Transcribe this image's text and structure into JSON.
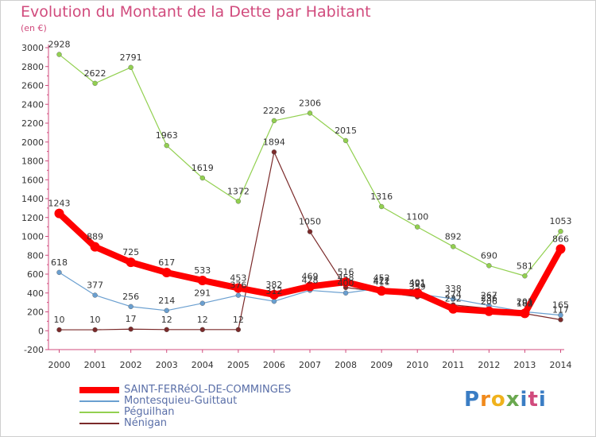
{
  "title": "Evolution du Montant de la Dette par Habitant",
  "subtitle": "(en €)",
  "logo_text": "Proxiti",
  "chart_data": {
    "type": "line",
    "title": "Evolution du Montant de la Dette par Habitant",
    "subtitle": "(en €)",
    "xlabel": "",
    "ylabel": "",
    "x": [
      2000,
      2001,
      2002,
      2003,
      2004,
      2005,
      2006,
      2007,
      2008,
      2009,
      2010,
      2011,
      2012,
      2013,
      2014
    ],
    "ylim": [
      -200,
      3000
    ],
    "yticks": [
      -200,
      0,
      200,
      400,
      600,
      800,
      1000,
      1200,
      1400,
      1600,
      1800,
      2000,
      2200,
      2400,
      2600,
      2800,
      3000
    ],
    "grid": false,
    "legend_position": "bottom",
    "series": [
      {
        "name": "SAINT-FERRéOL-DE-COMMINGES",
        "color": "#ff0000",
        "emphasis": true,
        "values": [
          1243,
          889,
          725,
          617,
          533,
          453,
          382,
          469,
          516,
          422,
          401,
          232,
          206,
          184,
          866
        ],
        "labels": [
          "1243",
          "889",
          "725",
          "617",
          "533",
          "453",
          "382",
          "469",
          "516",
          "422",
          "401",
          "232",
          "206",
          "184",
          "866"
        ]
      },
      {
        "name": "Montesquieu-Guittaut",
        "color": "#6a9fd0",
        "emphasis": false,
        "values": [
          618,
          377,
          256,
          214,
          291,
          376,
          312,
          428,
          400,
          452,
          391,
          338,
          267,
          201,
          165
        ],
        "labels": [
          "618",
          "377",
          "256",
          "214",
          "291",
          "376",
          "312",
          "428",
          "400",
          "452",
          "391",
          "338",
          "267",
          "201",
          "165"
        ]
      },
      {
        "name": "Péguilhan",
        "color": "#92d050",
        "emphasis": false,
        "values": [
          2928,
          2622,
          2791,
          1963,
          1619,
          1372,
          2226,
          2306,
          2015,
          1316,
          1100,
          892,
          690,
          581,
          1053
        ],
        "labels": [
          "2928",
          "2622",
          "2791",
          "1963",
          "1619",
          "1372",
          "2226",
          "2306",
          "2015",
          "1316",
          "1100",
          "892",
          "690",
          "581",
          "1053"
        ]
      },
      {
        "name": "Nénigan",
        "color": "#7b2a2a",
        "emphasis": false,
        "values": [
          10,
          10,
          17,
          12,
          12,
          12,
          1894,
          1050,
          458,
          411,
          359,
          274,
          236,
          182,
          117
        ],
        "labels": [
          "10",
          "10",
          "17",
          "12",
          "12",
          "12",
          "1894",
          "1050",
          "458",
          "411",
          "359",
          "274",
          "236",
          "182",
          "117"
        ]
      }
    ]
  }
}
